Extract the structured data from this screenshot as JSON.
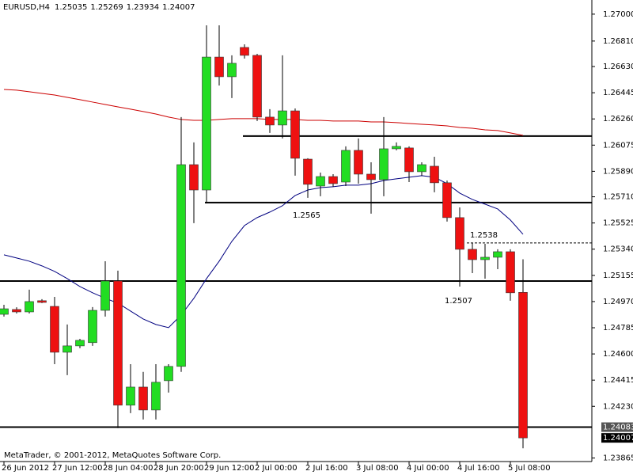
{
  "chart_data": {
    "type": "candlestick",
    "title": "EURUSD,H4",
    "footer": "MetaTrader, © 2001-2012, MetaQuotes Software Corp.",
    "categories": [
      "26 Jun 2012",
      null,
      null,
      null,
      "27 Jun 12:00",
      null,
      null,
      null,
      "28 Jun 04:00",
      null,
      null,
      null,
      "28 Jun 20:00",
      null,
      null,
      null,
      "29 Jun 12:00",
      null,
      null,
      null,
      "2 Jul 00:00",
      null,
      null,
      null,
      "2 Jul 16:00",
      null,
      null,
      null,
      "3 Jul 08:00",
      null,
      null,
      null,
      "4 Jul 00:00",
      null,
      null,
      null,
      "4 Jul 16:00",
      null,
      null,
      null,
      "5 Jul 08:00",
      null
    ],
    "open": [
      1.2488,
      1.24914,
      1.24897,
      1.24976,
      1.24936,
      1.24612,
      1.24657,
      1.2468,
      1.24908,
      1.25115,
      1.24238,
      1.24366,
      1.24204,
      1.24411,
      1.24512,
      1.25937,
      1.25758,
      1.26697,
      1.26558,
      1.26765,
      1.26709,
      1.26273,
      1.26217,
      1.26317,
      1.25976,
      1.25786,
      1.25853,
      1.25814,
      1.26038,
      1.2587,
      1.25831,
      1.26049,
      1.26055,
      1.25887,
      1.25926,
      1.25809,
      1.25563,
      1.25339,
      1.25266,
      1.25283,
      1.25322,
      1.25035
    ],
    "high": [
      1.24947,
      1.2493,
      1.25054,
      1.24987,
      1.25003,
      1.24808,
      1.24707,
      1.24931,
      1.25255,
      1.25188,
      1.24528,
      1.24473,
      1.24528,
      1.24528,
      1.26273,
      1.26094,
      1.26921,
      1.26921,
      1.26709,
      1.26787,
      1.2672,
      1.26329,
      1.26709,
      1.26334,
      1.25982,
      1.25881,
      1.2587,
      1.26066,
      1.26122,
      1.25954,
      1.26273,
      1.26094,
      1.26066,
      1.25954,
      1.25993,
      1.25825,
      1.25635,
      1.25384,
      1.25378,
      1.25339,
      1.25339,
      1.25269
    ],
    "low": [
      1.24864,
      1.24886,
      1.24886,
      1.24959,
      1.24528,
      1.2445,
      1.2464,
      1.24657,
      1.24864,
      1.24076,
      1.24182,
      1.24137,
      1.24137,
      1.24327,
      1.24473,
      1.25524,
      1.25663,
      1.26496,
      1.26407,
      1.26686,
      1.26245,
      1.26161,
      1.26122,
      1.25859,
      1.25703,
      1.25714,
      1.25781,
      1.25786,
      1.25803,
      1.25591,
      1.25714,
      1.26038,
      1.25814,
      1.25859,
      1.25742,
      1.25535,
      1.25076,
      1.25171,
      1.25132,
      1.25199,
      1.24976,
      1.23934
    ],
    "close": [
      1.24919,
      1.24897,
      1.2497,
      1.24964,
      1.24612,
      1.24657,
      1.24696,
      1.24908,
      1.25115,
      1.24238,
      1.24366,
      1.24204,
      1.244,
      1.24512,
      1.25937,
      1.25758,
      1.26697,
      1.26558,
      1.26653,
      1.26709,
      1.26273,
      1.26217,
      1.26317,
      1.25982,
      1.25798,
      1.25853,
      1.25803,
      1.26038,
      1.2587,
      1.25831,
      1.26049,
      1.26066,
      1.25887,
      1.25937,
      1.25809,
      1.25563,
      1.25339,
      1.25266,
      1.25283,
      1.25322,
      1.25032,
      1.24007
    ],
    "up_color": "#22dd22",
    "down_color": "#ee1111",
    "moving_averages": [
      {
        "color": "#cc0000",
        "values": [
          1.26468,
          1.26463,
          1.26452,
          1.2644,
          1.26429,
          1.26412,
          1.26396,
          1.26379,
          1.26362,
          1.26345,
          1.26329,
          1.26312,
          1.26295,
          1.26273,
          1.26256,
          1.2625,
          1.2625,
          1.26256,
          1.26262,
          1.26262,
          1.26262,
          1.26256,
          1.26256,
          1.26256,
          1.2625,
          1.2625,
          1.26245,
          1.26245,
          1.26245,
          1.26239,
          1.26239,
          1.26234,
          1.26228,
          1.26222,
          1.26217,
          1.26211,
          1.262,
          1.26194,
          1.26183,
          1.26178,
          1.26161,
          1.26144
        ]
      },
      {
        "color": "#000080",
        "values": [
          1.253,
          1.25278,
          1.25255,
          1.25222,
          1.25183,
          1.25132,
          1.25076,
          1.25032,
          1.24993,
          1.24959,
          1.24903,
          1.24847,
          1.24808,
          1.24786,
          1.24875,
          1.24993,
          1.25132,
          1.25255,
          1.25395,
          1.25507,
          1.25563,
          1.25602,
          1.25647,
          1.25719,
          1.25758,
          1.25775,
          1.25781,
          1.25792,
          1.25792,
          1.25803,
          1.25825,
          1.25837,
          1.25848,
          1.25859,
          1.25848,
          1.25803,
          1.25736,
          1.25691,
          1.25658,
          1.25624,
          1.25546,
          1.25445
        ]
      }
    ],
    "hlines": [
      {
        "value": 1.26139,
        "style": "solid"
      },
      {
        "value": 1.25669,
        "style": "solid"
      },
      {
        "value": 1.25115,
        "style": "solid"
      },
      {
        "value": 1.24083,
        "style": "solid"
      },
      {
        "value": 1.25384,
        "style": "dashed"
      }
    ],
    "annotations": [
      "1.2565",
      "1.2538",
      "1.2507"
    ],
    "price_markers": [
      {
        "value": 1.24083,
        "color": "#555555"
      },
      {
        "value": 1.24007,
        "color": "#000000"
      }
    ],
    "ylim": [
      1.2384,
      1.271
    ],
    "yticks": [
      {
        "value": 1.27,
        "label": "1.27000"
      },
      {
        "value": 1.2681,
        "label": "1.26810"
      },
      {
        "value": 1.2663,
        "label": "1.26630"
      },
      1.26445,
      {
        "value": 1.2626,
        "label": "1.26260"
      },
      1.26075,
      {
        "value": 1.2589,
        "label": "1.25890"
      },
      {
        "value": 1.2571,
        "label": "1.25710"
      },
      1.25525,
      {
        "value": 1.2534,
        "label": "1.25340"
      },
      1.25155,
      {
        "value": 1.2497,
        "label": "1.24970"
      },
      1.24785,
      {
        "value": 1.246,
        "label": "1.24600"
      },
      1.24415,
      {
        "value": 1.2423,
        "label": "1.24230"
      },
      1.23865
    ]
  }
}
